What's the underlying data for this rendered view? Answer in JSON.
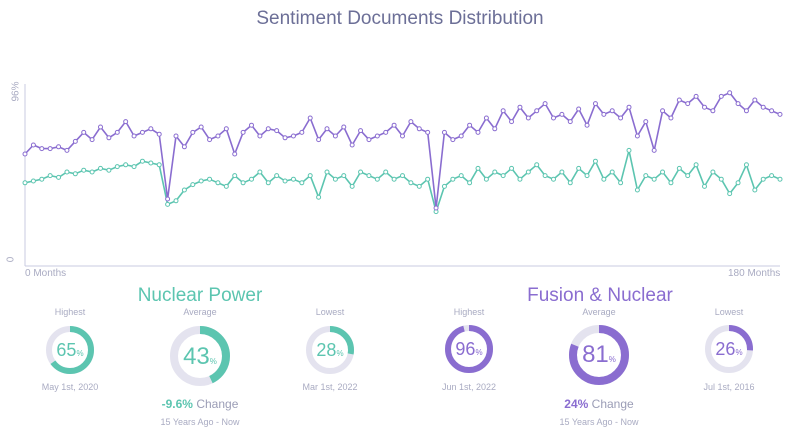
{
  "chart_data": {
    "type": "line",
    "title": "Sentiment Documents Distribution",
    "x_tick_labels": [
      "0 Months",
      "180 Months"
    ],
    "y_tick_labels": [
      "0",
      "96%"
    ],
    "xlim": [
      0,
      180
    ],
    "ylim": [
      0,
      100
    ],
    "grid": false,
    "x": [
      0,
      2,
      4,
      6,
      8,
      10,
      12,
      14,
      16,
      18,
      20,
      22,
      24,
      26,
      28,
      30,
      32,
      34,
      36,
      38,
      40,
      42,
      44,
      46,
      48,
      50,
      52,
      54,
      56,
      58,
      60,
      62,
      64,
      66,
      68,
      70,
      72,
      74,
      76,
      78,
      80,
      82,
      84,
      86,
      88,
      90,
      92,
      94,
      96,
      98,
      100,
      102,
      104,
      106,
      108,
      110,
      112,
      114,
      116,
      118,
      120,
      122,
      124,
      126,
      128,
      130,
      132,
      134,
      136,
      138,
      140,
      142,
      144,
      146,
      148,
      150,
      152,
      154,
      156,
      158,
      160,
      162,
      164,
      166,
      168,
      170,
      172,
      174,
      176,
      178,
      180
    ],
    "series": [
      {
        "color": "#8a6dd0",
        "values": [
          60,
          65,
          63,
          63,
          64,
          62,
          67,
          72,
          68,
          75,
          69,
          72,
          78,
          70,
          72,
          74,
          71,
          35,
          70,
          64,
          72,
          75,
          68,
          70,
          74,
          60,
          72,
          76,
          70,
          74,
          73,
          69,
          70,
          72,
          80,
          68,
          74,
          70,
          75,
          65,
          73,
          68,
          70,
          72,
          76,
          70,
          78,
          74,
          72,
          30,
          72,
          68,
          70,
          76,
          72,
          80,
          74,
          84,
          78,
          86,
          80,
          84,
          88,
          80,
          82,
          78,
          85,
          76,
          88,
          82,
          84,
          80,
          86,
          70,
          78,
          62,
          84,
          80,
          90,
          88,
          92,
          86,
          84,
          92,
          94,
          88,
          84,
          90,
          86,
          84,
          82
        ]
      },
      {
        "color": "#5cc5b0",
        "values": [
          44,
          45,
          46,
          48,
          47,
          50,
          49,
          51,
          50,
          52,
          51,
          53,
          54,
          53,
          56,
          55,
          54,
          32,
          34,
          40,
          43,
          45,
          46,
          44,
          42,
          48,
          44,
          46,
          50,
          44,
          48,
          45,
          46,
          44,
          48,
          36,
          50,
          46,
          48,
          42,
          50,
          48,
          46,
          50,
          46,
          48,
          44,
          42,
          46,
          28,
          42,
          46,
          48,
          44,
          52,
          46,
          50,
          48,
          52,
          46,
          50,
          54,
          48,
          46,
          50,
          44,
          52,
          48,
          56,
          46,
          50,
          44,
          62,
          40,
          48,
          46,
          50,
          44,
          52,
          48,
          54,
          42,
          50,
          46,
          38,
          44,
          54,
          40,
          46,
          48,
          46
        ]
      }
    ]
  },
  "colors": {
    "teal": "#5cc5b0",
    "purple": "#8a6dd0",
    "track": "#e4e3ef"
  },
  "groups": [
    {
      "title": "Nuclear Power",
      "color": "#5cc5b0",
      "highest": {
        "label": "Highest",
        "value": 65,
        "value_text": "65",
        "unit": "%",
        "date": "May 1st, 2020"
      },
      "average": {
        "label": "Average",
        "value": 43,
        "value_text": "43",
        "unit": "%",
        "change_value": "-9.6%",
        "change_label": "Change",
        "period": "15 Years Ago - Now"
      },
      "lowest": {
        "label": "Lowest",
        "value": 28,
        "value_text": "28",
        "unit": "%",
        "date": "Mar 1st, 2022"
      }
    },
    {
      "title": "Fusion & Nuclear",
      "color": "#8a6dd0",
      "highest": {
        "label": "Highest",
        "value": 96,
        "value_text": "96",
        "unit": "%",
        "date": "Jun 1st, 2022"
      },
      "average": {
        "label": "Average",
        "value": 81,
        "value_text": "81",
        "unit": "%",
        "change_value": "24%",
        "change_label": "Change",
        "period": "15 Years Ago - Now"
      },
      "lowest": {
        "label": "Lowest",
        "value": 26,
        "value_text": "26",
        "unit": "%",
        "date": "Jul 1st, 2016"
      }
    }
  ]
}
